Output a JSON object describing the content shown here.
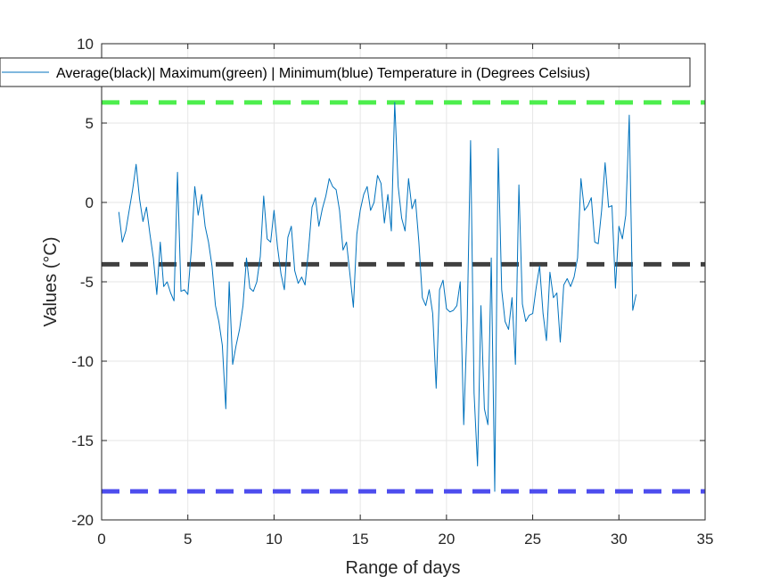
{
  "chart_data": {
    "type": "line",
    "xlabel": "Range of days",
    "ylabel": "Values (°C)",
    "xlim": [
      0,
      35
    ],
    "ylim": [
      -20,
      10
    ],
    "xticks": [
      0,
      5,
      10,
      15,
      20,
      25,
      30,
      35
    ],
    "yticks": [
      -20,
      -15,
      -10,
      -5,
      0,
      5,
      10
    ],
    "grid": true,
    "legend": {
      "placement": "top",
      "entries": [
        "Average(black)| Maximum(green) | Minimum(blue) Temperature in (Degrees Celsius)"
      ]
    },
    "colors": {
      "series": "#0072bd",
      "average": "#404040",
      "maximum": "#4dee4d",
      "minimum": "#4d4dee",
      "grid": "#e6e6e6",
      "axis": "#262626"
    },
    "reference_lines": [
      {
        "role": "average",
        "y": -3.9
      },
      {
        "role": "maximum",
        "y": 6.3
      },
      {
        "role": "minimum",
        "y": -18.2
      }
    ],
    "series": [
      {
        "x": [
          1.0,
          1.2,
          1.4,
          1.6,
          1.8,
          2.0,
          2.2,
          2.4,
          2.6,
          2.8,
          3.0,
          3.2,
          3.4,
          3.6,
          3.8,
          4.0,
          4.2,
          4.4,
          4.6,
          4.8,
          5.0,
          5.2,
          5.4,
          5.6,
          5.8,
          6.0,
          6.2,
          6.4,
          6.6,
          6.8,
          7.0,
          7.2,
          7.4,
          7.6,
          7.8,
          8.0,
          8.2,
          8.4,
          8.6,
          8.8,
          9.0,
          9.2,
          9.4,
          9.6,
          9.8,
          10.0,
          10.2,
          10.4,
          10.6,
          10.8,
          11.0,
          11.2,
          11.4,
          11.6,
          11.8,
          12.0,
          12.2,
          12.4,
          12.6,
          12.8,
          13.0,
          13.2,
          13.4,
          13.6,
          13.8,
          14.0,
          14.2,
          14.4,
          14.6,
          14.8,
          15.0,
          15.2,
          15.4,
          15.6,
          15.8,
          16.0,
          16.2,
          16.4,
          16.6,
          16.8,
          17.0,
          17.2,
          17.4,
          17.6,
          17.8,
          18.0,
          18.2,
          18.4,
          18.6,
          18.8,
          19.0,
          19.2,
          19.4,
          19.6,
          19.8,
          20.0,
          20.2,
          20.4,
          20.6,
          20.8,
          21.0,
          21.2,
          21.4,
          21.6,
          21.8,
          22.0,
          22.2,
          22.4,
          22.6,
          22.8,
          23.0,
          23.2,
          23.4,
          23.6,
          23.8,
          24.0,
          24.2,
          24.4,
          24.6,
          24.8,
          25.0,
          25.2,
          25.4,
          25.6,
          25.8,
          26.0,
          26.2,
          26.4,
          26.6,
          26.8,
          27.0,
          27.2,
          27.4,
          27.6,
          27.8,
          28.0,
          28.2,
          28.4,
          28.6,
          28.8,
          29.0,
          29.2,
          29.4,
          29.6,
          29.8,
          30.0,
          30.2,
          30.4,
          30.6,
          30.8,
          31.0
        ],
        "values": [
          -0.6,
          -2.5,
          -1.8,
          -0.5,
          0.8,
          2.4,
          0.2,
          -1.2,
          -0.3,
          -2.0,
          -3.5,
          -5.8,
          -2.5,
          -5.3,
          -5.0,
          -5.7,
          -6.2,
          1.9,
          -5.6,
          -5.5,
          -5.8,
          -3.0,
          1.0,
          -0.8,
          0.5,
          -1.5,
          -2.5,
          -4.0,
          -6.5,
          -7.5,
          -9.0,
          -13.0,
          -5.0,
          -10.2,
          -9.0,
          -8.0,
          -6.5,
          -3.5,
          -5.4,
          -5.6,
          -5.0,
          -3.4,
          0.4,
          -2.3,
          -2.5,
          -0.5,
          -2.8,
          -4.5,
          -5.5,
          -2.2,
          -1.5,
          -4.3,
          -5.1,
          -4.7,
          -5.2,
          -3.0,
          -0.3,
          0.3,
          -1.5,
          -0.4,
          0.4,
          1.5,
          1.0,
          0.8,
          -0.5,
          -3.0,
          -2.5,
          -4.5,
          -6.6,
          -2.0,
          -0.5,
          0.5,
          1.0,
          -0.5,
          0.0,
          1.7,
          1.2,
          -1.3,
          0.5,
          -1.8,
          6.3,
          1.0,
          -1.0,
          -1.8,
          1.5,
          -0.4,
          0.2,
          -2.5,
          -6.0,
          -6.5,
          -5.5,
          -7.0,
          -11.7,
          -5.5,
          -4.9,
          -6.7,
          -6.9,
          -6.8,
          -6.5,
          -5.0,
          -14.0,
          -7.5,
          3.9,
          -12.0,
          -16.6,
          -6.5,
          -13.0,
          -14.0,
          -3.5,
          -18.2,
          3.4,
          -5.5,
          -7.5,
          -8.0,
          -6.0,
          -10.2,
          1.1,
          -6.4,
          -7.5,
          -7.1,
          -7.0,
          -5.4,
          -4.0,
          -7.0,
          -8.7,
          -4.4,
          -6.0,
          -5.7,
          -8.8,
          -5.2,
          -4.8,
          -5.3,
          -4.7,
          -3.5,
          1.5,
          -0.5,
          -0.2,
          0.3,
          -2.5,
          -2.6,
          -0.5,
          2.5,
          -0.3,
          -0.2,
          -5.4,
          -1.5,
          -2.3,
          -0.8,
          5.5,
          -6.8,
          -5.8
        ]
      }
    ]
  }
}
